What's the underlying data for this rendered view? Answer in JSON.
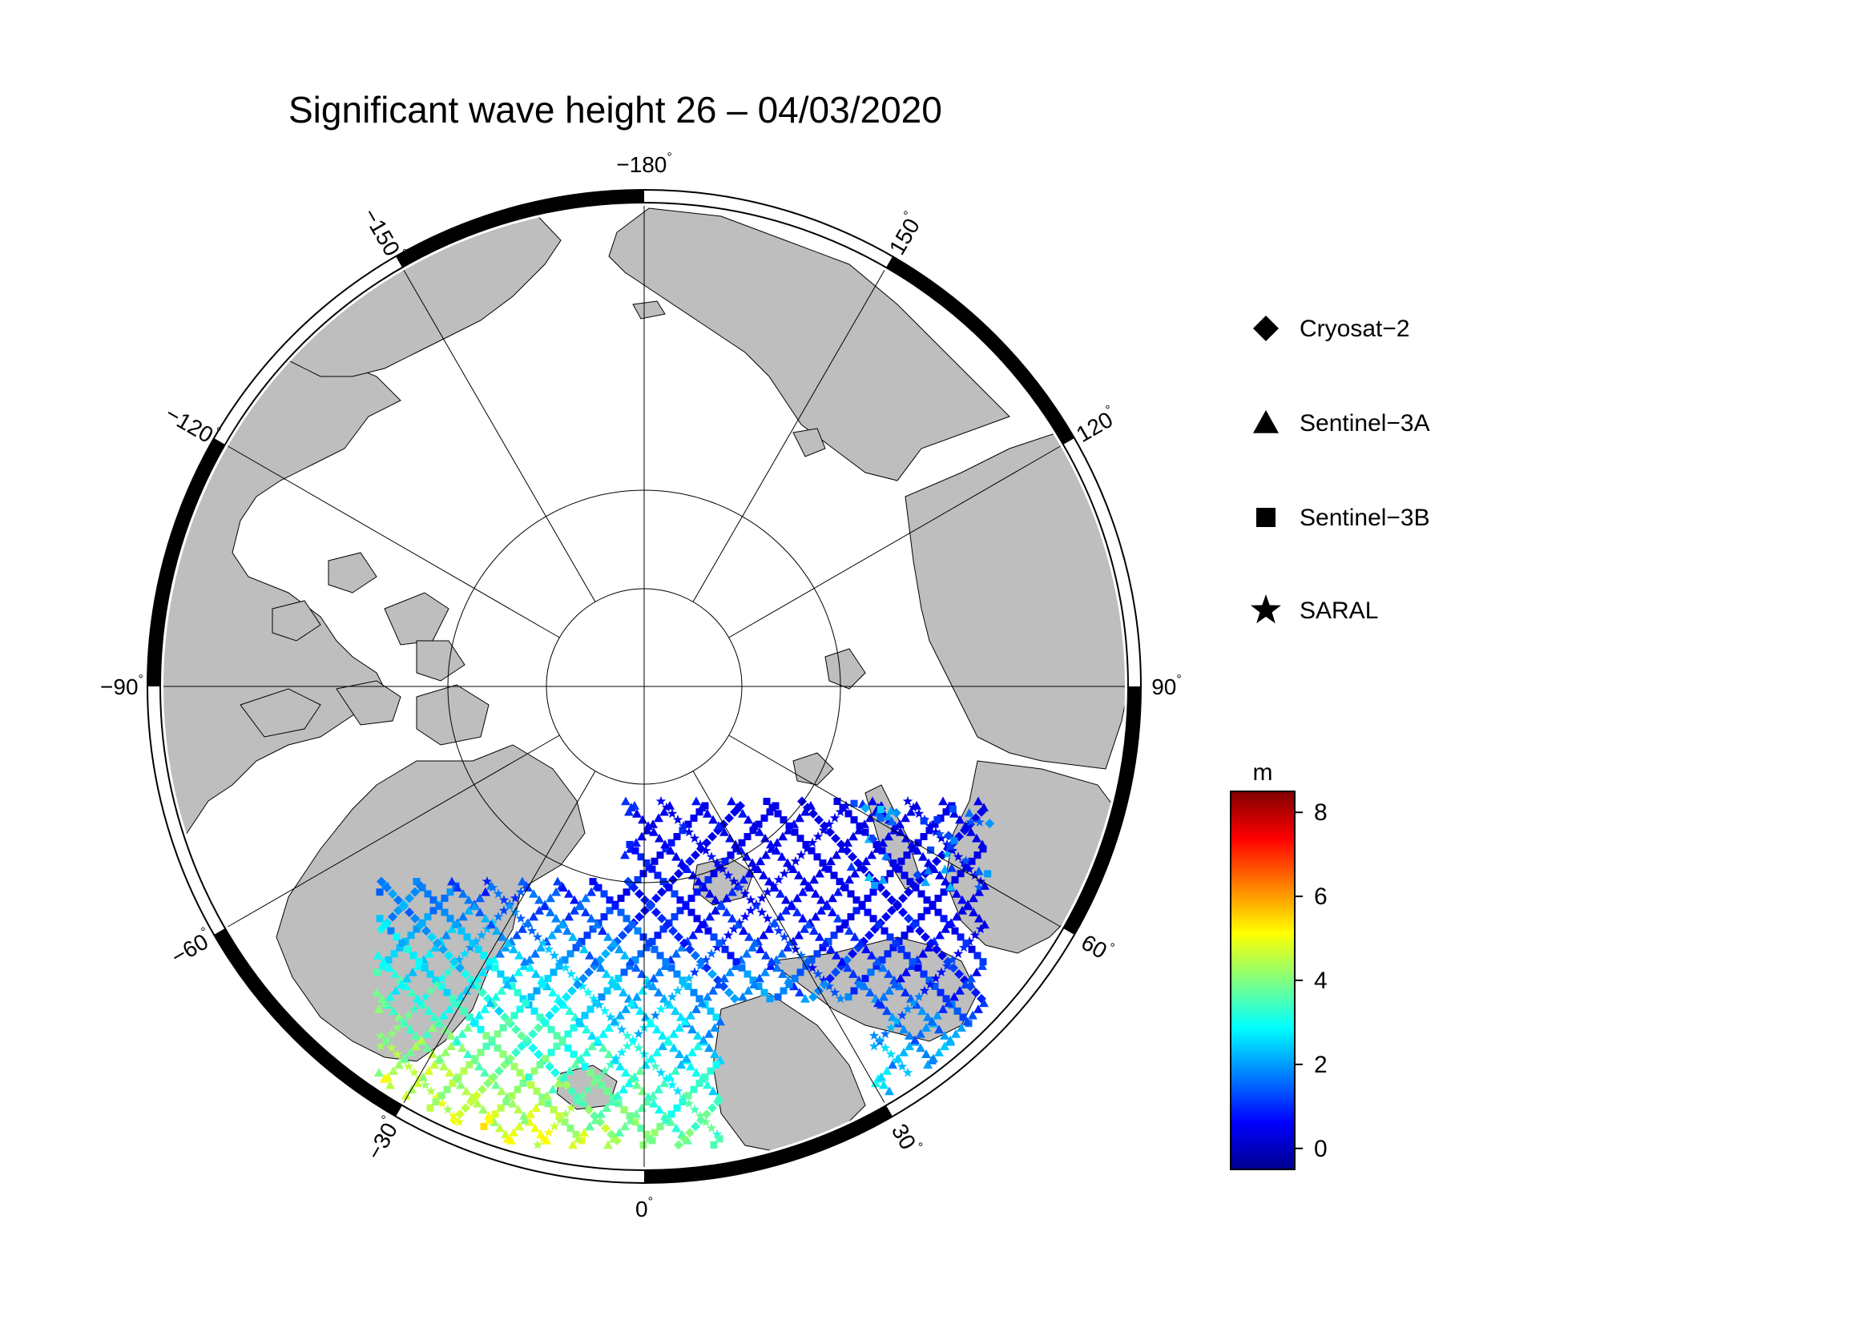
{
  "title": "Significant wave height 26 – 04/03/2020",
  "map": {
    "longitude_labels": [
      {
        "lon": -180,
        "text": "−180"
      },
      {
        "lon": 150,
        "text": "150"
      },
      {
        "lon": 120,
        "text": "120"
      },
      {
        "lon": 90,
        "text": "90"
      },
      {
        "lon": 60,
        "text": "60"
      },
      {
        "lon": 30,
        "text": "30"
      },
      {
        "lon": 0,
        "text": "0"
      },
      {
        "lon": -30,
        "text": "−30"
      },
      {
        "lon": -60,
        "text": "−60"
      },
      {
        "lon": -90,
        "text": "−90"
      },
      {
        "lon": -120,
        "text": "−120"
      },
      {
        "lon": -150,
        "text": "−150"
      }
    ],
    "degree_symbol": "°",
    "land_color": "#bebebe",
    "ocean_color": "#ffffff"
  },
  "legend": {
    "items": [
      {
        "icon": "diamond-icon",
        "label": "Cryosat−2"
      },
      {
        "icon": "triangle-icon",
        "label": "Sentinel−3A"
      },
      {
        "icon": "square-icon",
        "label": "Sentinel−3B"
      },
      {
        "icon": "star-icon",
        "label": "SARAL"
      }
    ]
  },
  "colorbar": {
    "unit": "m",
    "min": -0.5,
    "max": 8.5,
    "ticks": [
      {
        "value": 0,
        "label": "0"
      },
      {
        "value": 2,
        "label": "2"
      },
      {
        "value": 4,
        "label": "4"
      },
      {
        "value": 6,
        "label": "6"
      },
      {
        "value": 8,
        "label": "8"
      }
    ],
    "colors": [
      "#00008f",
      "#0000ff",
      "#0080ff",
      "#00ffff",
      "#80ff80",
      "#ffff00",
      "#ff8000",
      "#ff0000",
      "#800000"
    ]
  }
}
